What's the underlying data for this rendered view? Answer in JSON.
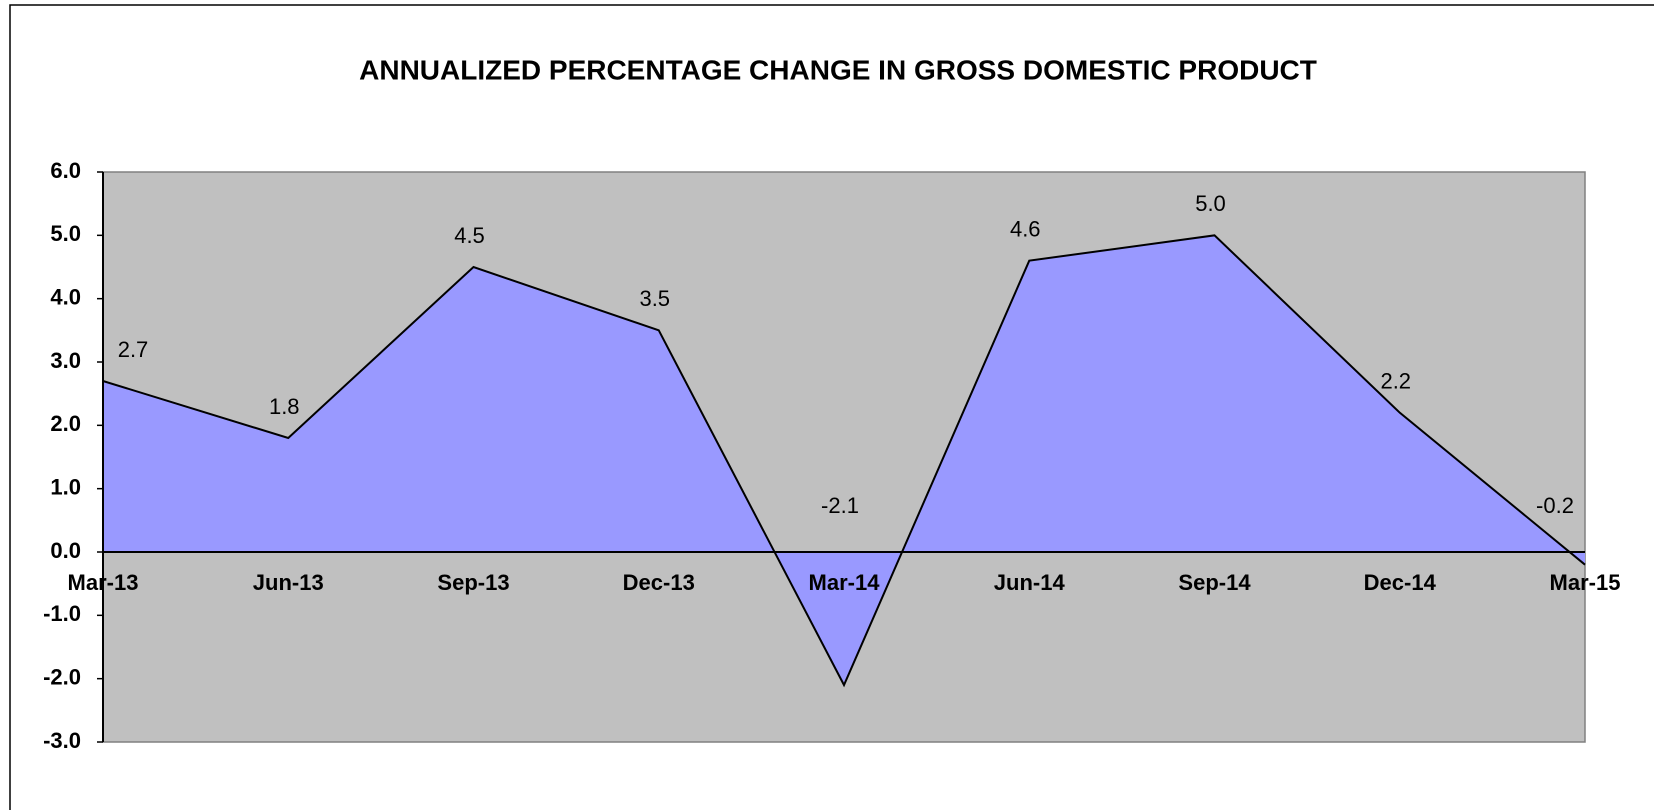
{
  "chart_data": {
    "type": "area",
    "title": "ANNUALIZED PERCENTAGE CHANGE IN GROSS DOMESTIC PRODUCT",
    "categories": [
      "Mar-13",
      "Jun-13",
      "Sep-13",
      "Dec-13",
      "Mar-14",
      "Jun-14",
      "Sep-14",
      "Dec-14",
      "Mar-15"
    ],
    "values": [
      2.7,
      1.8,
      4.5,
      3.5,
      -2.1,
      4.6,
      5.0,
      2.2,
      -0.2
    ],
    "value_labels": [
      "2.7",
      "1.8",
      "4.5",
      "3.5",
      "-2.1",
      "4.6",
      "5.0",
      "2.2",
      "-0.2"
    ],
    "color": "#9999ff",
    "ylim": [
      -3,
      6
    ],
    "yticks": [
      {
        "value": -3,
        "label": "-3.0"
      },
      {
        "value": -2,
        "label": "-2.0"
      },
      {
        "value": -1,
        "label": "-1.0"
      },
      {
        "value": 0,
        "label": "0.0"
      },
      {
        "value": 1,
        "label": "1.0"
      },
      {
        "value": 2,
        "label": "2.0"
      },
      {
        "value": 3,
        "label": "3.0"
      },
      {
        "value": 4,
        "label": "4.0"
      },
      {
        "value": 5,
        "label": "5.0"
      },
      {
        "value": 6,
        "label": "6.0"
      }
    ],
    "grid": false
  }
}
